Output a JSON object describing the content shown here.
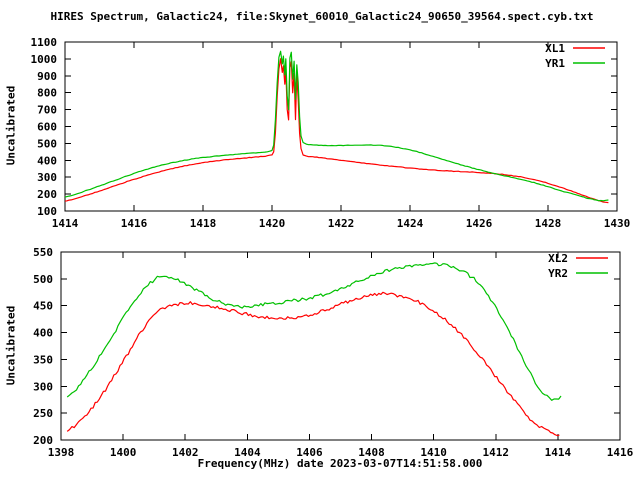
{
  "title": "HIRES Spectrum, Galactic24, file:Skynet_60010_Galactic24_90650_39564.spect.cyb.txt",
  "colors": {
    "background": "#ffffff",
    "axis": "#000000",
    "series_red": "#ff0000",
    "series_green": "#00c000"
  },
  "chart_data": [
    {
      "type": "line",
      "ylabel": "Uncalibrated",
      "xlabel": "",
      "xlim": [
        1414,
        1430
      ],
      "ylim": [
        100,
        1100
      ],
      "x_ticks": [
        1414,
        1416,
        1418,
        1420,
        1422,
        1424,
        1426,
        1428,
        1430
      ],
      "y_ticks": [
        100,
        200,
        300,
        400,
        500,
        600,
        700,
        800,
        900,
        1000,
        1100
      ],
      "grid": false,
      "legend_position": "top-right",
      "series": [
        {
          "name": "XL1",
          "color": "#ff0000",
          "noise": 1.5,
          "points": [
            [
              1414.0,
              158
            ],
            [
              1414.3,
              172
            ],
            [
              1414.6,
              192
            ],
            [
              1415.0,
              218
            ],
            [
              1415.4,
              246
            ],
            [
              1415.8,
              274
            ],
            [
              1416.2,
              300
            ],
            [
              1416.6,
              324
            ],
            [
              1417.0,
              346
            ],
            [
              1417.4,
              364
            ],
            [
              1417.8,
              380
            ],
            [
              1418.2,
              392
            ],
            [
              1418.6,
              402
            ],
            [
              1419.0,
              410
            ],
            [
              1419.4,
              417
            ],
            [
              1419.8,
              424
            ],
            [
              1420.0,
              432
            ],
            [
              1420.05,
              450
            ],
            [
              1420.1,
              560
            ],
            [
              1420.15,
              780
            ],
            [
              1420.2,
              940
            ],
            [
              1420.25,
              1000
            ],
            [
              1420.3,
              920
            ],
            [
              1420.33,
              960
            ],
            [
              1420.37,
              850
            ],
            [
              1420.4,
              930
            ],
            [
              1420.44,
              700
            ],
            [
              1420.48,
              640
            ],
            [
              1420.52,
              950
            ],
            [
              1420.56,
              985
            ],
            [
              1420.6,
              800
            ],
            [
              1420.64,
              915
            ],
            [
              1420.68,
              640
            ],
            [
              1420.72,
              905
            ],
            [
              1420.76,
              760
            ],
            [
              1420.8,
              560
            ],
            [
              1420.84,
              470
            ],
            [
              1420.9,
              432
            ],
            [
              1421.0,
              424
            ],
            [
              1421.3,
              418
            ],
            [
              1421.6,
              410
            ],
            [
              1422.0,
              400
            ],
            [
              1422.4,
              390
            ],
            [
              1422.8,
              380
            ],
            [
              1423.2,
              370
            ],
            [
              1423.6,
              362
            ],
            [
              1424.0,
              354
            ],
            [
              1424.4,
              347
            ],
            [
              1424.8,
              341
            ],
            [
              1425.2,
              336
            ],
            [
              1425.6,
              332
            ],
            [
              1426.0,
              328
            ],
            [
              1426.4,
              322
            ],
            [
              1426.8,
              314
            ],
            [
              1427.2,
              302
            ],
            [
              1427.6,
              286
            ],
            [
              1428.0,
              264
            ],
            [
              1428.4,
              238
            ],
            [
              1428.8,
              210
            ],
            [
              1429.1,
              186
            ],
            [
              1429.4,
              165
            ],
            [
              1429.6,
              153
            ],
            [
              1429.75,
              150
            ]
          ]
        },
        {
          "name": "YR1",
          "color": "#00c000",
          "noise": 1.5,
          "points": [
            [
              1414.0,
              182
            ],
            [
              1414.3,
              198
            ],
            [
              1414.6,
              220
            ],
            [
              1415.0,
              248
            ],
            [
              1415.4,
              278
            ],
            [
              1415.8,
              308
            ],
            [
              1416.2,
              336
            ],
            [
              1416.6,
              360
            ],
            [
              1417.0,
              381
            ],
            [
              1417.4,
              398
            ],
            [
              1417.8,
              411
            ],
            [
              1418.2,
              421
            ],
            [
              1418.6,
              429
            ],
            [
              1419.0,
              436
            ],
            [
              1419.4,
              442
            ],
            [
              1419.8,
              448
            ],
            [
              1420.0,
              458
            ],
            [
              1420.05,
              490
            ],
            [
              1420.1,
              640
            ],
            [
              1420.15,
              860
            ],
            [
              1420.2,
              1010
            ],
            [
              1420.25,
              1045
            ],
            [
              1420.3,
              970
            ],
            [
              1420.33,
              1015
            ],
            [
              1420.37,
              905
            ],
            [
              1420.4,
              1000
            ],
            [
              1420.44,
              780
            ],
            [
              1420.48,
              700
            ],
            [
              1420.52,
              1005
            ],
            [
              1420.56,
              1040
            ],
            [
              1420.6,
              880
            ],
            [
              1420.64,
              985
            ],
            [
              1420.68,
              760
            ],
            [
              1420.72,
              965
            ],
            [
              1420.76,
              860
            ],
            [
              1420.8,
              660
            ],
            [
              1420.84,
              545
            ],
            [
              1420.9,
              505
            ],
            [
              1421.0,
              494
            ],
            [
              1421.3,
              489
            ],
            [
              1421.6,
              487
            ],
            [
              1422.0,
              488
            ],
            [
              1422.4,
              490
            ],
            [
              1422.8,
              491
            ],
            [
              1423.2,
              487
            ],
            [
              1423.6,
              478
            ],
            [
              1424.0,
              462
            ],
            [
              1424.4,
              440
            ],
            [
              1424.8,
              414
            ],
            [
              1425.2,
              390
            ],
            [
              1425.6,
              366
            ],
            [
              1426.0,
              344
            ],
            [
              1426.4,
              324
            ],
            [
              1426.8,
              306
            ],
            [
              1427.2,
              288
            ],
            [
              1427.6,
              268
            ],
            [
              1428.0,
              244
            ],
            [
              1428.4,
              218
            ],
            [
              1428.8,
              196
            ],
            [
              1429.1,
              178
            ],
            [
              1429.4,
              164
            ],
            [
              1429.6,
              160
            ],
            [
              1429.75,
              165
            ]
          ]
        }
      ]
    },
    {
      "type": "line",
      "ylabel": "Uncalibrated",
      "xlabel": "Frequency(MHz) date 2023-03-07T14:51:58.000",
      "xlim": [
        1398,
        1416
      ],
      "ylim": [
        200,
        550
      ],
      "x_ticks": [
        1398,
        1400,
        1402,
        1404,
        1406,
        1408,
        1410,
        1412,
        1414,
        1416
      ],
      "y_ticks": [
        200,
        250,
        300,
        350,
        400,
        450,
        500,
        550
      ],
      "grid": false,
      "legend_position": "top-right",
      "series": [
        {
          "name": "XL2",
          "color": "#ff0000",
          "noise": 3,
          "points": [
            [
              1398.2,
              216
            ],
            [
              1398.5,
              228
            ],
            [
              1398.9,
              252
            ],
            [
              1399.3,
              282
            ],
            [
              1399.7,
              318
            ],
            [
              1400.1,
              356
            ],
            [
              1400.5,
              394
            ],
            [
              1400.9,
              426
            ],
            [
              1401.2,
              444
            ],
            [
              1401.5,
              451
            ],
            [
              1401.9,
              454
            ],
            [
              1402.3,
              455
            ],
            [
              1402.7,
              451
            ],
            [
              1403.1,
              446
            ],
            [
              1403.5,
              441
            ],
            [
              1403.9,
              435
            ],
            [
              1404.3,
              430
            ],
            [
              1404.7,
              427
            ],
            [
              1405.1,
              426
            ],
            [
              1405.5,
              428
            ],
            [
              1405.9,
              432
            ],
            [
              1406.3,
              438
            ],
            [
              1406.7,
              446
            ],
            [
              1407.1,
              455
            ],
            [
              1407.5,
              463
            ],
            [
              1407.9,
              469
            ],
            [
              1408.3,
              473
            ],
            [
              1408.7,
              471
            ],
            [
              1409.1,
              466
            ],
            [
              1409.5,
              457
            ],
            [
              1409.9,
              444
            ],
            [
              1410.3,
              428
            ],
            [
              1410.7,
              408
            ],
            [
              1411.1,
              384
            ],
            [
              1411.5,
              356
            ],
            [
              1411.9,
              326
            ],
            [
              1412.3,
              296
            ],
            [
              1412.7,
              266
            ],
            [
              1413.1,
              240
            ],
            [
              1413.4,
              226
            ],
            [
              1413.7,
              216
            ],
            [
              1413.9,
              211
            ],
            [
              1414.05,
              209
            ]
          ]
        },
        {
          "name": "YR2",
          "color": "#00c000",
          "noise": 3,
          "points": [
            [
              1398.2,
              280
            ],
            [
              1398.5,
              296
            ],
            [
              1398.9,
              326
            ],
            [
              1399.3,
              360
            ],
            [
              1399.7,
              398
            ],
            [
              1400.1,
              436
            ],
            [
              1400.5,
              470
            ],
            [
              1400.8,
              490
            ],
            [
              1401.1,
              502
            ],
            [
              1401.4,
              505
            ],
            [
              1401.7,
              500
            ],
            [
              1402.1,
              488
            ],
            [
              1402.5,
              474
            ],
            [
              1402.9,
              462
            ],
            [
              1403.3,
              452
            ],
            [
              1403.7,
              448
            ],
            [
              1404.1,
              449
            ],
            [
              1404.5,
              452
            ],
            [
              1404.9,
              455
            ],
            [
              1405.3,
              458
            ],
            [
              1405.7,
              461
            ],
            [
              1406.1,
              465
            ],
            [
              1406.5,
              471
            ],
            [
              1406.9,
              479
            ],
            [
              1407.3,
              489
            ],
            [
              1407.7,
              499
            ],
            [
              1408.1,
              508
            ],
            [
              1408.5,
              515
            ],
            [
              1408.9,
              521
            ],
            [
              1409.3,
              524
            ],
            [
              1409.7,
              526
            ],
            [
              1410.1,
              527
            ],
            [
              1410.5,
              524
            ],
            [
              1410.9,
              516
            ],
            [
              1411.3,
              500
            ],
            [
              1411.7,
              474
            ],
            [
              1412.1,
              438
            ],
            [
              1412.5,
              394
            ],
            [
              1412.9,
              348
            ],
            [
              1413.2,
              314
            ],
            [
              1413.5,
              288
            ],
            [
              1413.8,
              274
            ],
            [
              1413.95,
              276
            ],
            [
              1414.1,
              282
            ]
          ]
        }
      ]
    }
  ]
}
